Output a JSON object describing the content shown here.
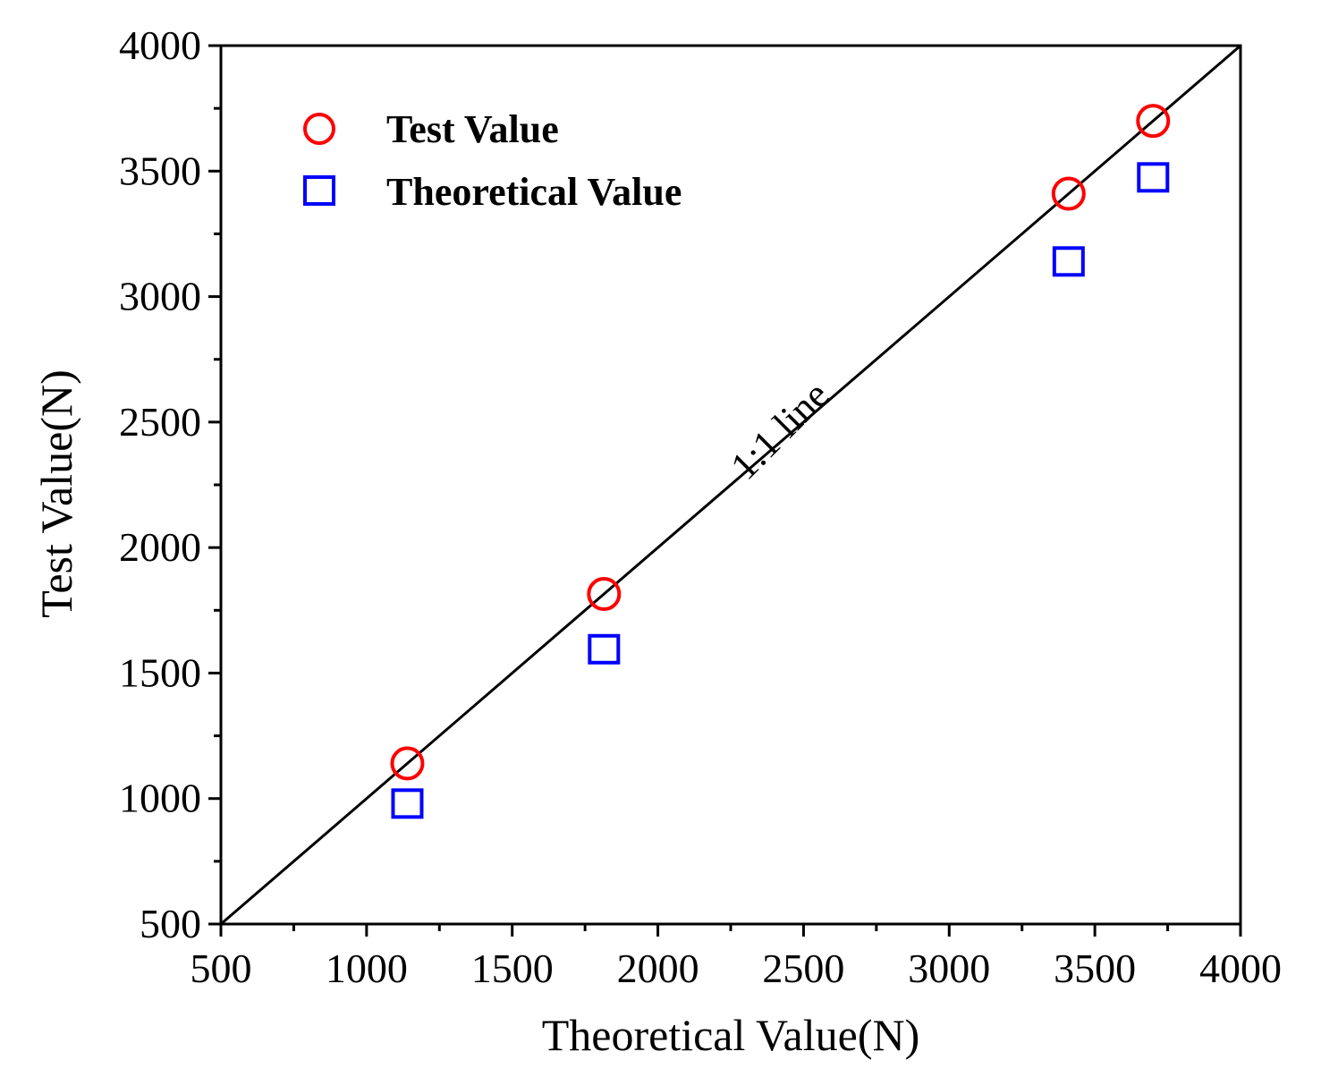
{
  "chart_data": {
    "type": "scatter",
    "title": "",
    "xlabel": "Theoretical Value(N)",
    "ylabel": "Test Value(N)",
    "xlim": [
      500,
      4000
    ],
    "ylim": [
      500,
      4000
    ],
    "xticks": [
      "500",
      "1000",
      "1500",
      "2000",
      "2500",
      "3000",
      "3500",
      "4000"
    ],
    "yticks": [
      "500",
      "1000",
      "1500",
      "2000",
      "2500",
      "3000",
      "3500",
      "4000"
    ],
    "x_tick_values": [
      500,
      1000,
      1500,
      2000,
      2500,
      3000,
      3500,
      4000
    ],
    "y_tick_values": [
      500,
      1000,
      1500,
      2000,
      2500,
      3000,
      3500,
      4000
    ],
    "x_minor_tick_values": [
      750,
      1250,
      1750,
      2250,
      2750,
      3250,
      3750
    ],
    "y_minor_tick_values": [
      750,
      1250,
      1750,
      2250,
      2750,
      3250,
      3750
    ],
    "series": [
      {
        "name": "Test Value",
        "marker": "circle",
        "color": "#ff0000",
        "points": [
          [
            1140,
            1140
          ],
          [
            1815,
            1815
          ],
          [
            3410,
            3410
          ],
          [
            3700,
            3700
          ]
        ]
      },
      {
        "name": "Theoretical Value",
        "marker": "square",
        "color": "#0000ff",
        "points": [
          [
            1140,
            980
          ],
          [
            1815,
            1595
          ],
          [
            3410,
            3140
          ],
          [
            3700,
            3475
          ]
        ]
      }
    ],
    "reference_line": {
      "label": "1:1 line",
      "from": [
        500,
        500
      ],
      "to": [
        4000,
        4000
      ],
      "label_at": [
        2450,
        2430
      ],
      "label_rotation_deg": -45
    },
    "legend": {
      "position": "top-left",
      "entries": [
        "Test Value",
        "Theoretical Value"
      ]
    },
    "grid": false
  }
}
